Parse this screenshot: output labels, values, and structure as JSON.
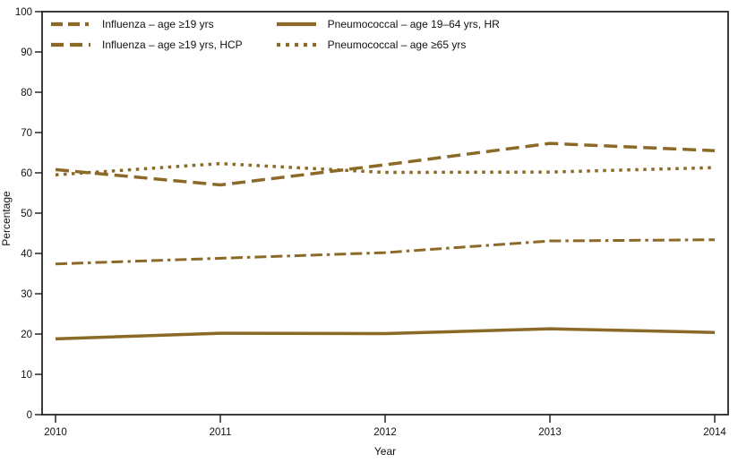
{
  "chart_data": {
    "type": "line",
    "title": "",
    "xlabel": "Year",
    "ylabel": "Percentage",
    "x": [
      2010,
      2011,
      2012,
      2013,
      2014
    ],
    "ylim": [
      0,
      100
    ],
    "ytick_step": 10,
    "grid": false,
    "legend_position": "top-left-inside",
    "line_color": "#8B6A28",
    "axis_color": "#1a1a1a",
    "series": [
      {
        "name": "Influenza – age ≥19 yrs",
        "style": "dash-dash-dot",
        "values": [
          37.4,
          38.8,
          40.2,
          43.1,
          43.4
        ]
      },
      {
        "name": "Influenza – age ≥19 yrs, HCP",
        "style": "dashed",
        "values": [
          60.8,
          57.0,
          62.0,
          67.3,
          65.5
        ]
      },
      {
        "name": "Pneumococcal – age 19–64 yrs, HR",
        "style": "solid",
        "values": [
          18.8,
          20.2,
          20.1,
          21.3,
          20.4
        ]
      },
      {
        "name": "Pneumococcal – age ≥65 yrs",
        "style": "dotted",
        "values": [
          59.5,
          62.3,
          60.1,
          60.2,
          61.3
        ]
      }
    ]
  },
  "axes": {
    "x_label": "Year",
    "y_label": "Percentage",
    "x_ticks": [
      "2010",
      "2011",
      "2012",
      "2013",
      "2014"
    ],
    "y_ticks": [
      "0",
      "10",
      "20",
      "30",
      "40",
      "50",
      "60",
      "70",
      "80",
      "90",
      "100"
    ]
  }
}
